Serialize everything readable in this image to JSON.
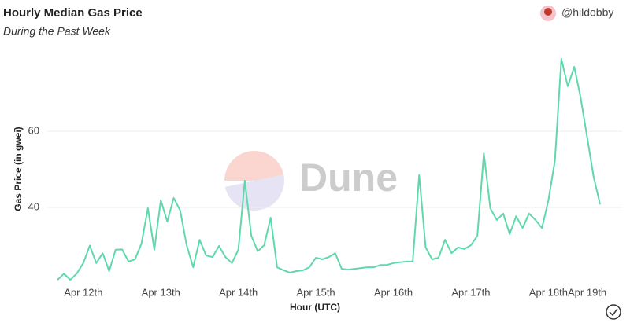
{
  "chart_data": {
    "type": "line",
    "title": "Hourly Median Gas Price",
    "subtitle": "During the Past Week",
    "author": "@hildobby",
    "watermark": "Dune",
    "x_label": "Hour (UTC)",
    "y_label": "Gas Price (in gwei)",
    "categories": [
      null,
      null,
      null,
      null,
      "Apr 12th",
      null,
      null,
      null,
      null,
      null,
      null,
      null,
      null,
      null,
      null,
      null,
      "Apr 13th",
      null,
      null,
      null,
      null,
      null,
      null,
      null,
      null,
      null,
      null,
      null,
      "Apr 14th",
      null,
      null,
      null,
      null,
      null,
      null,
      null,
      null,
      null,
      null,
      null,
      "Apr 15th",
      null,
      null,
      null,
      null,
      null,
      null,
      null,
      null,
      null,
      null,
      null,
      "Apr 16th",
      null,
      null,
      null,
      null,
      null,
      null,
      null,
      null,
      null,
      null,
      null,
      "Apr 17th",
      null,
      null,
      null,
      null,
      null,
      null,
      null,
      null,
      null,
      null,
      null,
      "Apr 18th",
      null,
      null,
      null,
      null,
      null,
      "Apr 19th",
      null,
      null
    ],
    "values": [
      21,
      22.6,
      21,
      22.7,
      25.4,
      30,
      25.4,
      28,
      23.3,
      28.9,
      29,
      25.8,
      26.4,
      30.5,
      39.8,
      28.9,
      41.9,
      36.3,
      42.5,
      39.2,
      30.1,
      24.3,
      31.5,
      27.4,
      27,
      29.9,
      27,
      25.4,
      28.9,
      47,
      32.6,
      28.5,
      30.1,
      37.3,
      24.3,
      23.5,
      22.9,
      23.3,
      23.5,
      24.3,
      26.8,
      26.4,
      27,
      28,
      23.9,
      23.7,
      23.9,
      24.1,
      24.3,
      24.3,
      24.9,
      24.9,
      25.4,
      25.6,
      25.8,
      25.8,
      48.5,
      29.5,
      26.4,
      26.8,
      31.5,
      28,
      29.5,
      29.1,
      30.1,
      32.6,
      54.2,
      39.8,
      36.7,
      38.4,
      33,
      37.7,
      34.6,
      38.4,
      36.7,
      34.6,
      41.9,
      52.2,
      79,
      71.8,
      76.9,
      68.7,
      58.4,
      48,
      40.8
    ],
    "color": "#5fd9ab",
    "ylim": [
      20,
      80
    ],
    "yticks": [
      40,
      60
    ],
    "grid": true
  }
}
